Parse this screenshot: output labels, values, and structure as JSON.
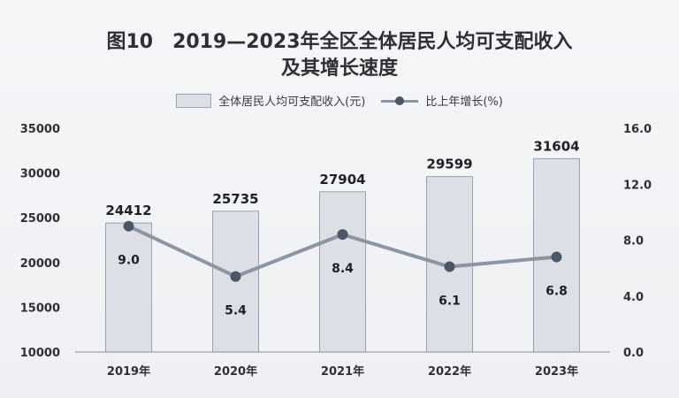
{
  "title": {
    "line1": "图10　2019—2023年全区全体居民人均可支配收入",
    "line2": "及其增长速度"
  },
  "colors": {
    "bar_fill": "#dcdfe5",
    "bar_stroke": "#9aa1ad",
    "line": "#8c95a3",
    "marker": "#4d5667",
    "text": "#2f3033"
  },
  "chart_data": {
    "type": "bar",
    "categories": [
      "2019年",
      "2020年",
      "2021年",
      "2022年",
      "2023年"
    ],
    "series": [
      {
        "name": "全体居民人均可支配收入(元)",
        "type": "bar",
        "axis": "left",
        "values": [
          24412,
          25735,
          27904,
          29599,
          31604
        ]
      },
      {
        "name": "比上年增长(%)",
        "type": "line",
        "axis": "right",
        "values": [
          9.0,
          5.4,
          8.4,
          6.1,
          6.8
        ]
      }
    ],
    "y_left": {
      "range": [
        10000,
        35000
      ],
      "ticks": [
        "10000",
        "15000",
        "20000",
        "25000",
        "30000",
        "35000"
      ]
    },
    "y_right": {
      "range": [
        0,
        16
      ],
      "ticks": [
        "0.0",
        "4.0",
        "8.0",
        "12.0",
        "16.0"
      ]
    },
    "bar_labels": [
      "24412",
      "25735",
      "27904",
      "29599",
      "31604"
    ],
    "line_labels": [
      "9.0",
      "5.4",
      "8.4",
      "6.1",
      "6.8"
    ],
    "grid": false,
    "legend": "top-center"
  }
}
